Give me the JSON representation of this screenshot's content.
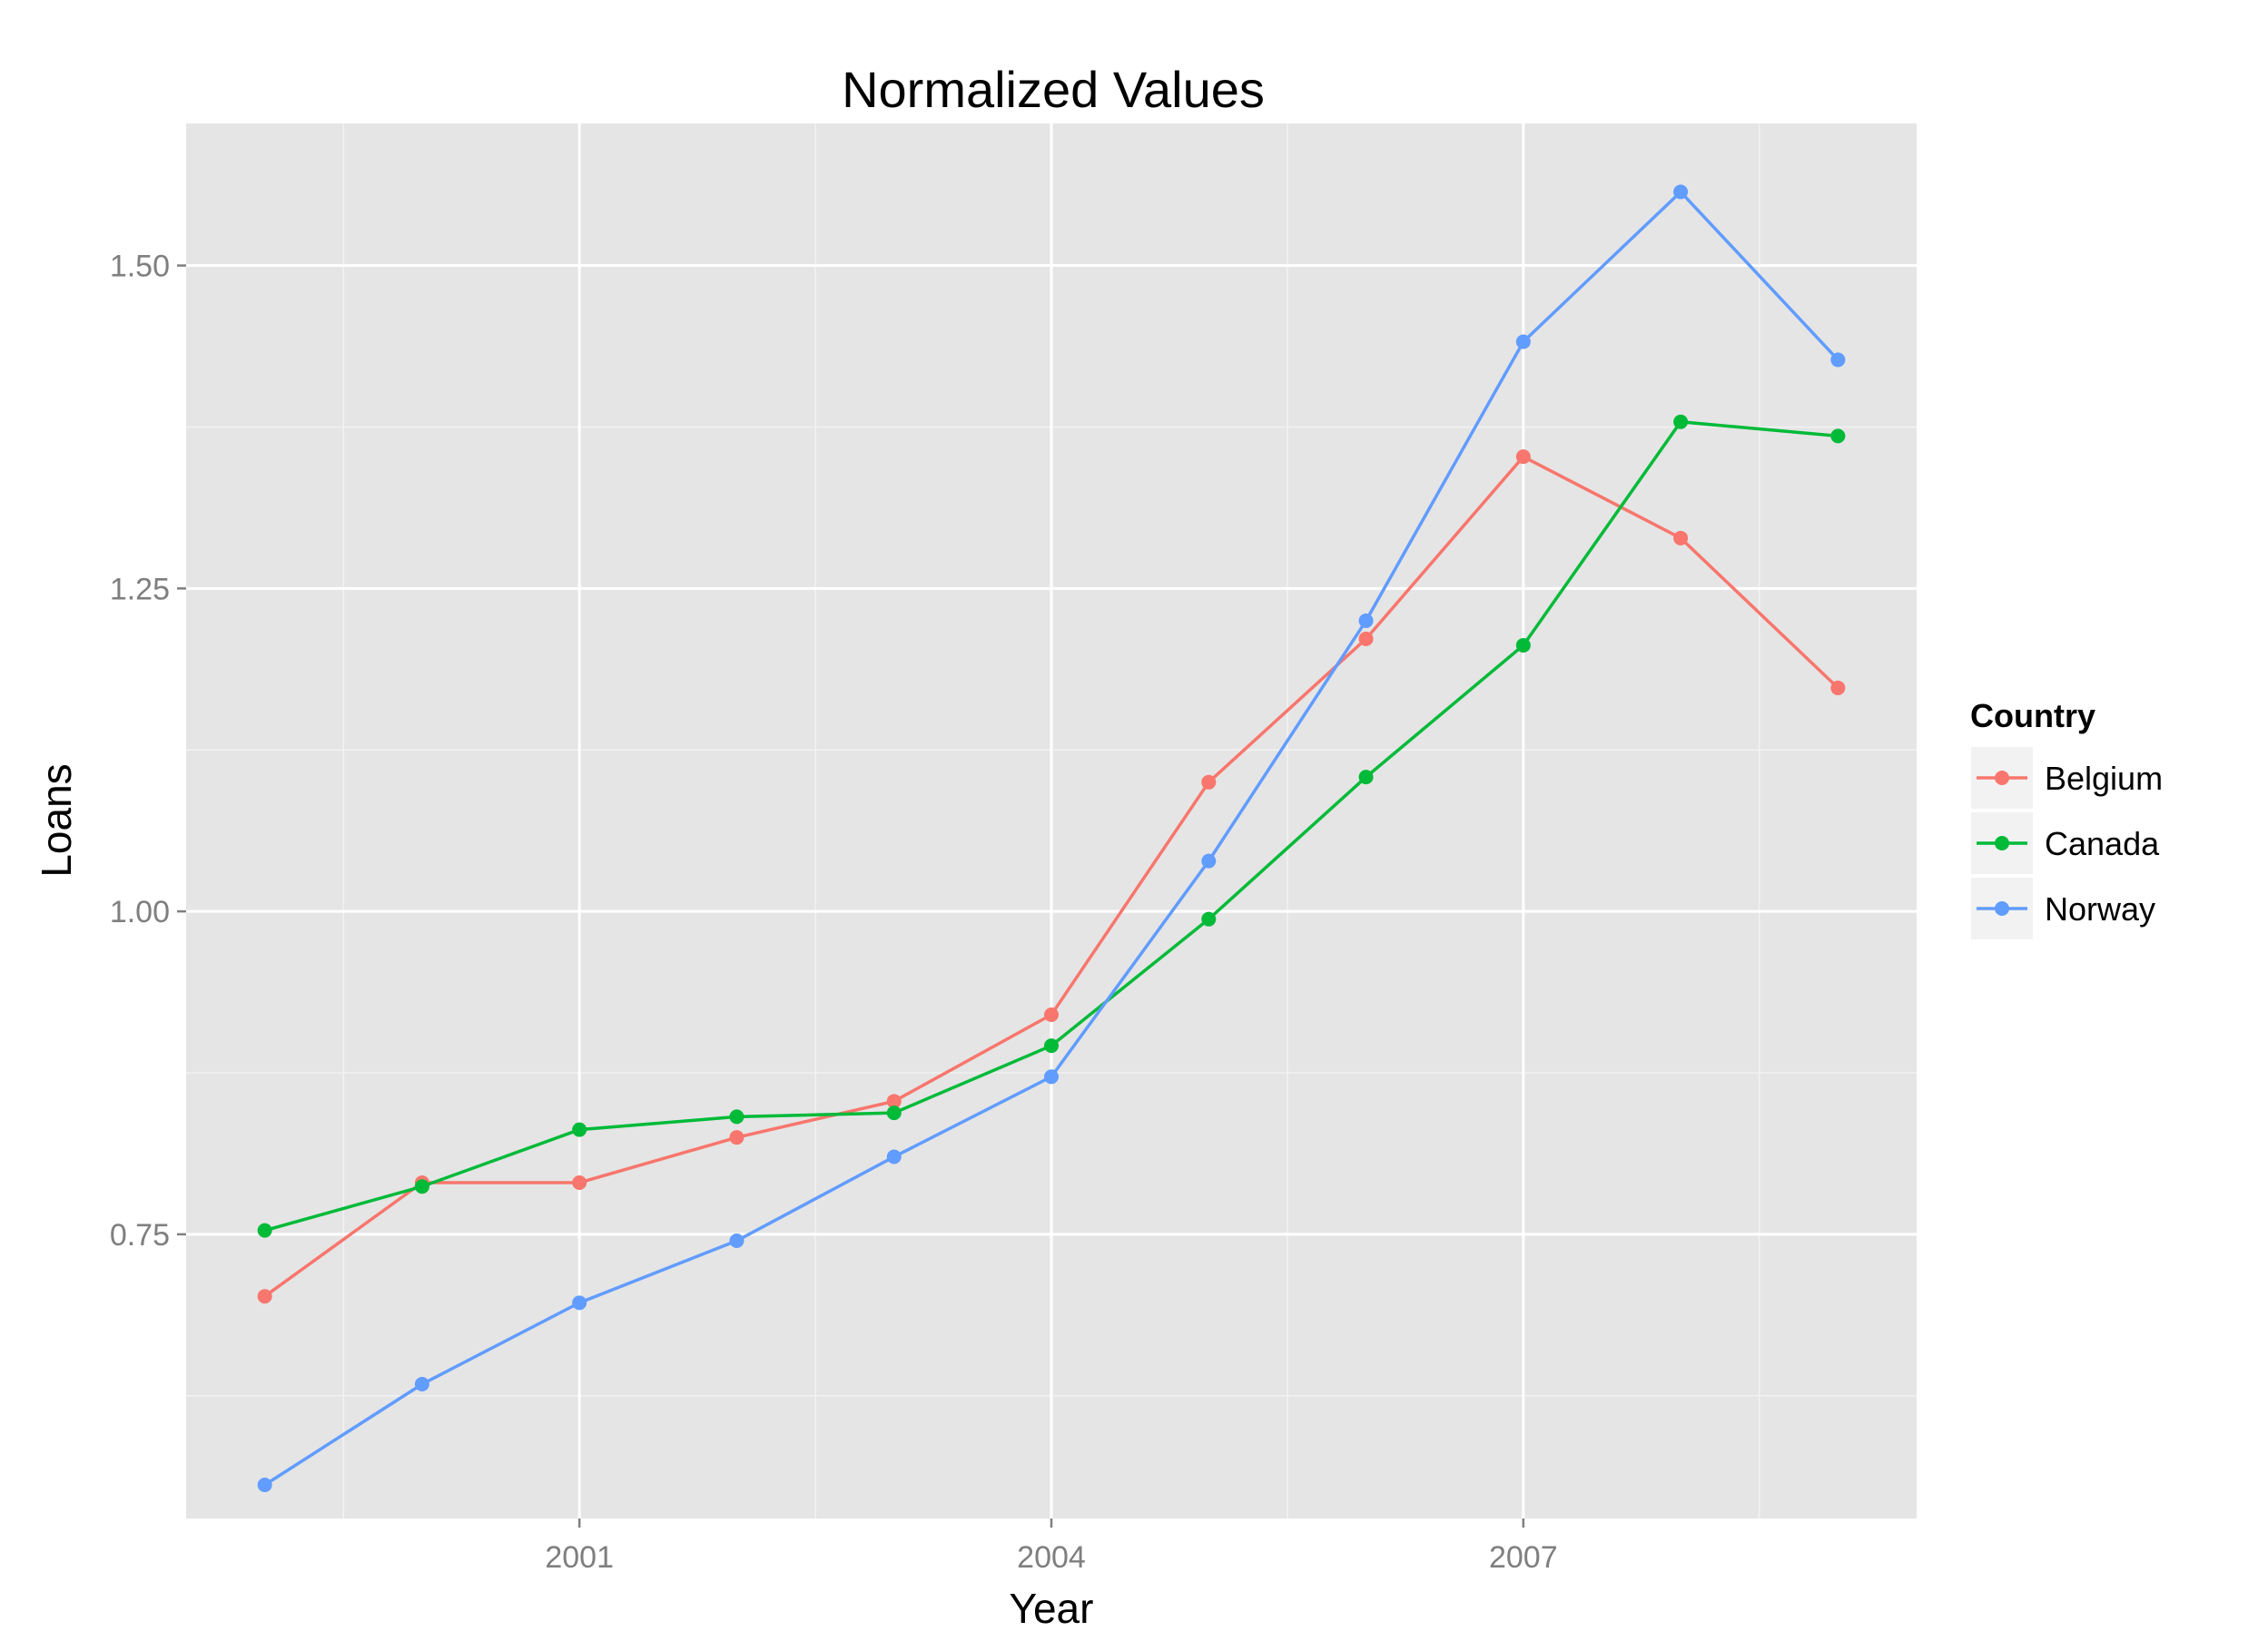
{
  "chart_data": {
    "type": "line",
    "title": "Normalized Values",
    "xlabel": "Year",
    "ylabel": "Loans",
    "x": [
      1999,
      2000,
      2001,
      2002,
      2003,
      2004,
      2005,
      2006,
      2007,
      2008,
      2009
    ],
    "xlim": [
      1998.5,
      2009.5
    ],
    "ylim": [
      0.53,
      1.61
    ],
    "x_ticks": [
      2001,
      2004,
      2007
    ],
    "x_tick_labels": [
      "2001",
      "2004",
      "2007"
    ],
    "y_ticks": [
      0.75,
      1.0,
      1.25,
      1.5
    ],
    "y_tick_labels": [
      "0.75",
      "1.00",
      "1.25",
      "1.50"
    ],
    "grid": true,
    "legend_title": "Country",
    "legend_position": "right",
    "series": [
      {
        "name": "Belgium",
        "color": "#F8766D",
        "values": [
          0.702,
          0.79,
          0.79,
          0.825,
          0.853,
          0.92,
          1.1,
          1.211,
          1.352,
          1.289,
          1.173
        ]
      },
      {
        "name": "Canada",
        "color": "#00BA38",
        "values": [
          0.753,
          0.787,
          0.831,
          0.841,
          0.844,
          0.896,
          0.994,
          1.104,
          1.206,
          1.379,
          1.368
        ]
      },
      {
        "name": "Norway",
        "color": "#619CFF",
        "values": [
          0.556,
          0.634,
          0.697,
          0.745,
          0.81,
          0.872,
          1.039,
          1.225,
          1.441,
          1.557,
          1.427
        ]
      }
    ]
  }
}
